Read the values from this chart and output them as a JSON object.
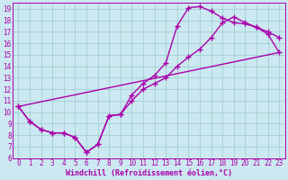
{
  "xlabel": "Windchill (Refroidissement éolien,°C)",
  "bg_color": "#cce8f0",
  "grid_color": "#99cccc",
  "line_color": "#aa00aa",
  "xlim": [
    -0.5,
    23.5
  ],
  "ylim": [
    6,
    19.5
  ],
  "xticks": [
    0,
    1,
    2,
    3,
    4,
    5,
    6,
    7,
    8,
    9,
    10,
    11,
    12,
    13,
    14,
    15,
    16,
    17,
    18,
    19,
    20,
    21,
    22,
    23
  ],
  "yticks": [
    6,
    7,
    8,
    9,
    10,
    11,
    12,
    13,
    14,
    15,
    16,
    17,
    18,
    19
  ],
  "curve1_x": [
    0,
    1,
    2,
    3,
    4,
    5,
    6,
    7,
    8,
    9,
    10,
    11,
    12,
    13,
    14,
    15,
    16,
    17,
    18,
    19,
    20,
    21,
    22,
    23
  ],
  "curve1_y": [
    10.5,
    9.2,
    8.5,
    8.2,
    8.2,
    7.8,
    6.5,
    7.2,
    9.7,
    9.8,
    11.5,
    12.5,
    13.2,
    14.3,
    17.5,
    19.1,
    19.2,
    18.8,
    18.2,
    17.8,
    17.7,
    17.4,
    16.8,
    15.2
  ],
  "curve2_x": [
    0,
    1,
    2,
    3,
    4,
    5,
    6,
    7,
    8,
    9,
    10,
    11,
    12,
    13,
    14,
    15,
    16,
    17,
    18,
    19,
    20,
    21,
    22,
    23
  ],
  "curve2_y": [
    10.5,
    9.2,
    8.5,
    8.2,
    8.2,
    7.8,
    6.5,
    7.2,
    9.7,
    9.8,
    11.0,
    12.0,
    12.5,
    13.0,
    14.0,
    14.8,
    15.5,
    16.5,
    17.8,
    18.3,
    17.8,
    17.4,
    17.0,
    16.5
  ],
  "curve3_x": [
    0,
    23
  ],
  "curve3_y": [
    10.5,
    15.2
  ],
  "marker": "+",
  "markersize": 4,
  "markeredgewidth": 1.0,
  "linewidth": 1.0,
  "tick_fontsize": 5.5,
  "xlabel_fontsize": 6.0
}
